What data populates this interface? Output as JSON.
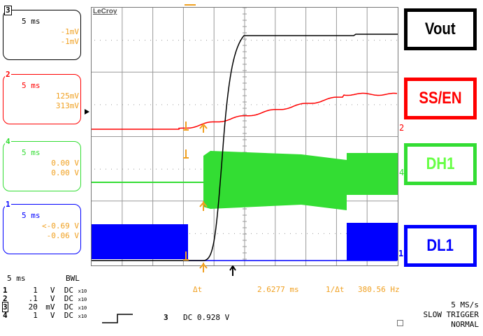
{
  "header": {
    "brand": "LeCroy"
  },
  "channels": [
    {
      "num": "3",
      "timebase": "5 ms",
      "val1": "-1mV",
      "val2": "-1mV",
      "color": "#000000",
      "val_color": "#f0a020"
    },
    {
      "num": "2",
      "timebase": "5 ms",
      "val1": "125mV",
      "val2": "313mV",
      "color": "#ff0000",
      "val_color": "#f0a020"
    },
    {
      "num": "4",
      "timebase": "5 ms",
      "val1": "0.00 V",
      "val2": "0.00 V",
      "color": "#33dd33",
      "val_color": "#f0a020"
    },
    {
      "num": "1",
      "timebase": "5 ms",
      "val1": "<-0.69 V",
      "val2": "-0.06 V",
      "color": "#0000ff",
      "val_color": "#f0a020"
    }
  ],
  "labels": [
    {
      "text": "Vout",
      "color": "#000000",
      "text_color": "#000000"
    },
    {
      "text": "SS/EN",
      "color": "#ff0000",
      "text_color": "#ff0000"
    },
    {
      "text": "DH1",
      "color": "#33dd33",
      "text_color": "#66ff44"
    },
    {
      "text": "DL1",
      "color": "#0000ff",
      "text_color": "#0000ff"
    }
  ],
  "trace_markers": {
    "ch2": "2",
    "ch4": "4",
    "ch1": "1"
  },
  "measurement": {
    "delta_label": "Δt",
    "delta_value": "2.6277 ms",
    "inv_label": "1/Δt",
    "inv_value": "380.56 Hz"
  },
  "bottom": {
    "timebase": "5 ms",
    "bwl": "BWL",
    "rows": [
      {
        "ch": "1",
        "volts": "1",
        "unit": "V",
        "coupling": "DC"
      },
      {
        "ch": "2",
        "volts": ".1",
        "unit": "V",
        "coupling": "DC"
      },
      {
        "ch": "3",
        "volts": "20",
        "unit": "mV",
        "coupling": "DC"
      },
      {
        "ch": "4",
        "volts": "1",
        "unit": "V",
        "coupling": "DC"
      }
    ],
    "probe": "x10",
    "trigger_ch": "3",
    "trigger_text": "DC 0.928 V",
    "sample_rate": "5 MS/s",
    "trigger_mode": "SLOW TRIGGER",
    "trigger_state": "NORMAL"
  }
}
